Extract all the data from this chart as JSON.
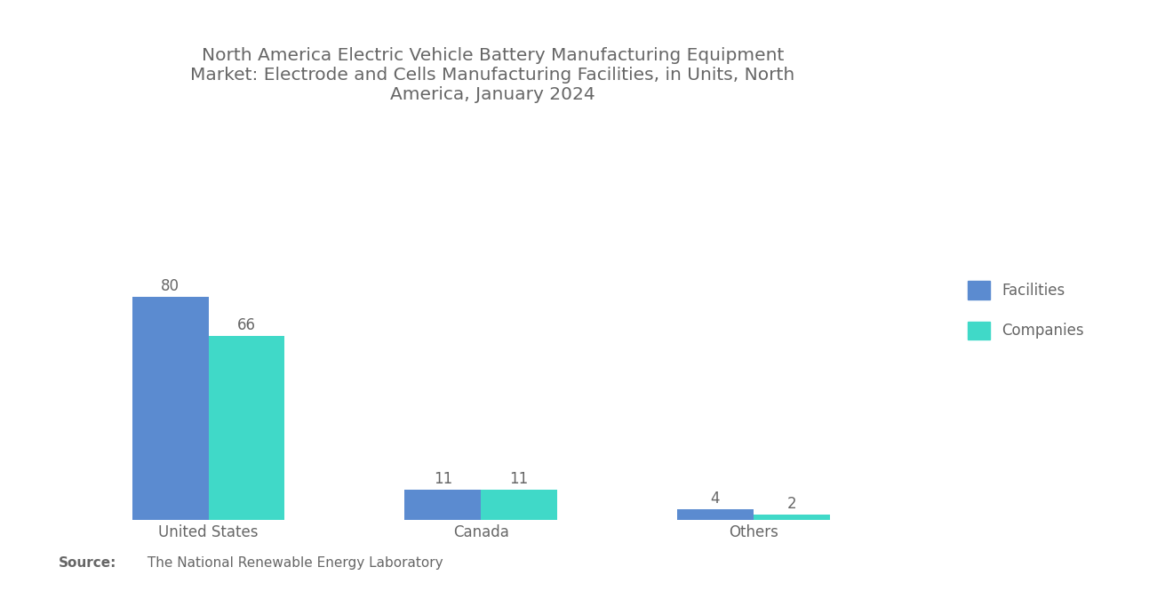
{
  "title": "North America Electric Vehicle Battery Manufacturing Equipment\nMarket: Electrode and Cells Manufacturing Facilities, in Units, North\nAmerica, January 2024",
  "categories": [
    "United States",
    "Canada",
    "Others"
  ],
  "facilities": [
    80,
    11,
    4
  ],
  "companies": [
    66,
    11,
    2
  ],
  "facilities_color": "#5B8BD0",
  "companies_color": "#40D9C8",
  "title_color": "#666666",
  "label_color": "#666666",
  "source_bold": "Source:",
  "source_text": " The National Renewable Energy Laboratory",
  "background_color": "#ffffff",
  "bar_width": 0.28,
  "ylim": [
    0,
    110
  ],
  "value_fontsize": 12,
  "category_fontsize": 12,
  "title_fontsize": 14.5,
  "legend_fontsize": 12
}
